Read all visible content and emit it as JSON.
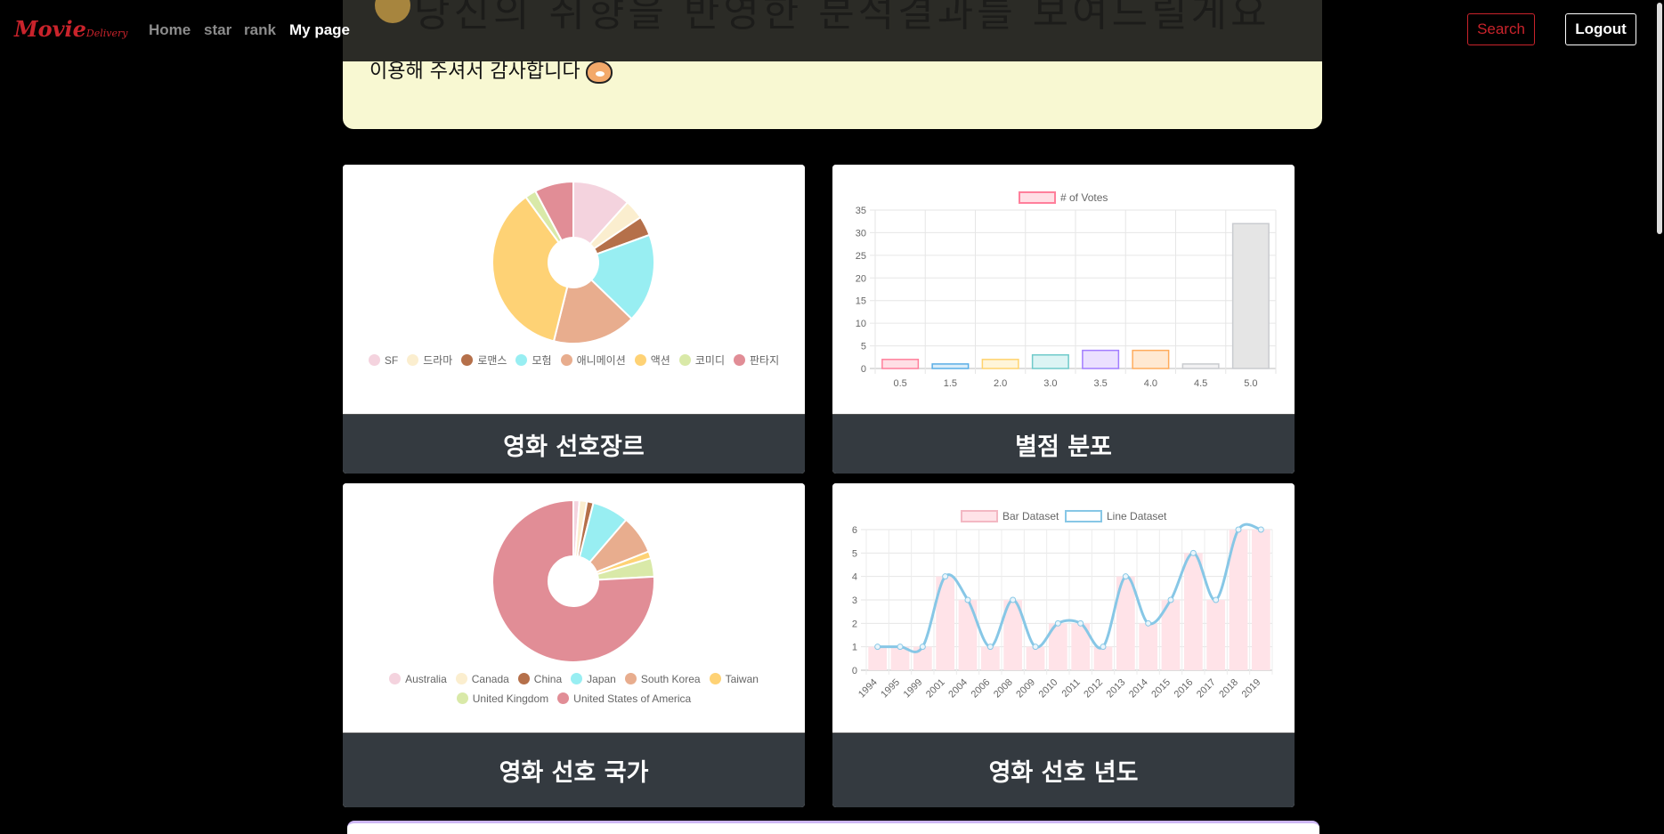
{
  "navbar": {
    "brand_main": "Movie",
    "brand_sub": "Delivery",
    "links": [
      "Home",
      "star",
      "rank",
      "My page"
    ],
    "search_label": "Search",
    "logout_label": "Logout"
  },
  "banner": {
    "heading": "당신의 취향을 반영한 분석결과를 보여드릴게요",
    "subtitle": "이용해 주셔서 감사합니다"
  },
  "colors": {
    "brand": "#c9232b",
    "banner_bg": "#f8f8d2",
    "footer_bg": "#343a40"
  },
  "cards": {
    "genre": {
      "footer": "영화 선호장르",
      "chart_data": {
        "type": "pie",
        "doughnut": true,
        "labels": [
          "SF",
          "드라마",
          "로맨스",
          "모험",
          "애니메이션",
          "액션",
          "코미디",
          "판타지"
        ],
        "values": [
          10.5,
          3.5,
          3.5,
          16,
          15,
          32.5,
          2,
          7
        ],
        "colors": [
          "#f4d3de",
          "#fbeecf",
          "#b5704a",
          "#98eef2",
          "#e8ad8e",
          "#fed275",
          "#d9e9a8",
          "#e18d96"
        ],
        "legend_position": "bottom"
      }
    },
    "rating": {
      "footer": "별점 분포",
      "chart_data": {
        "type": "bar",
        "categories": [
          "0.5",
          "1.5",
          "2.0",
          "3.0",
          "3.5",
          "4.0",
          "4.5",
          "5.0"
        ],
        "series": [
          {
            "name": "# of Votes",
            "values": [
              2,
              1,
              2,
              3,
              4,
              4,
              1,
              32
            ]
          }
        ],
        "colors": [
          "#ffdfe5",
          "#dbeef9",
          "#fff5d9",
          "#dcf4f4",
          "#ebe0ff",
          "#ffe9d2",
          "#f2f2f3",
          "#e5e5e5"
        ],
        "borders": [
          "#ff7f9b",
          "#5aaee6",
          "#ffd36e",
          "#6fcaca",
          "#a27dff",
          "#ffac5c",
          "#c9cbcf",
          "#c9cbcf"
        ],
        "ylim": [
          0,
          35
        ],
        "ticks": [
          0,
          5,
          10,
          15,
          20,
          25,
          30,
          35
        ],
        "grid": true,
        "legend_position": "top"
      }
    },
    "country": {
      "footer": "영화 선호 국가",
      "chart_data": {
        "type": "pie",
        "doughnut": true,
        "labels": [
          "Australia",
          "Canada",
          "China",
          "Japan",
          "South Korea",
          "Taiwan",
          "United Kingdom",
          "United States of America"
        ],
        "values": [
          1.2,
          1.5,
          1.3,
          7.3,
          7.7,
          1.4,
          3.7,
          75.9
        ],
        "colors": [
          "#f4d3de",
          "#fbeecf",
          "#b5704a",
          "#98eef2",
          "#e8ad8e",
          "#fed275",
          "#d9e9a8",
          "#e18d96"
        ],
        "legend_position": "bottom"
      }
    },
    "year": {
      "footer": "영화 선호 년도",
      "chart_data": {
        "type": "bar",
        "categories": [
          "1994",
          "1995",
          "1999",
          "2001",
          "2004",
          "2006",
          "2008",
          "2009",
          "2010",
          "2011",
          "2012",
          "2013",
          "2014",
          "2015",
          "2016",
          "2017",
          "2018",
          "2019"
        ],
        "series": [
          {
            "name": "Bar Dataset",
            "type": "bar",
            "values": [
              1,
              1,
              1,
              4,
              3,
              1,
              3,
              1,
              2,
              2,
              1,
              4,
              2,
              3,
              5,
              3,
              6,
              6
            ]
          },
          {
            "name": "Line Dataset",
            "type": "line",
            "values": [
              1,
              1,
              1,
              4,
              3,
              1,
              3,
              1,
              2,
              2,
              1,
              4,
              2,
              3,
              5,
              3,
              6,
              6
            ]
          }
        ],
        "bar_color": "#ffe3e8",
        "line_color": "#87c7e6",
        "ylim": [
          0,
          6
        ],
        "ticks": [
          0,
          1,
          2,
          3,
          4,
          5,
          6
        ],
        "grid": true,
        "legend_position": "top"
      }
    }
  }
}
